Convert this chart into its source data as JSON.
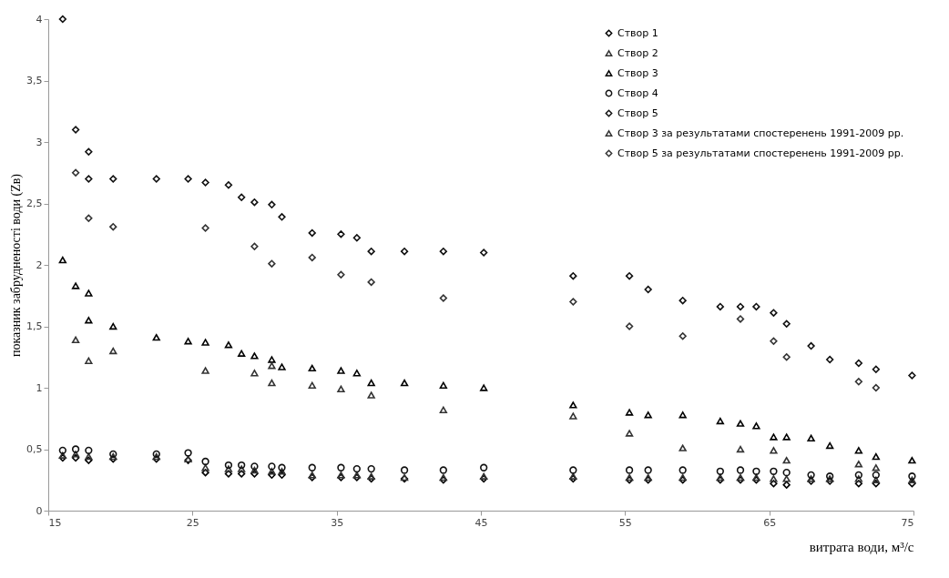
{
  "chart_data": {
    "type": "scatter",
    "xlabel": "витрата води, м³/с",
    "ylabel": "показник забрудненості води (Zв)",
    "xlim": [
      15,
      75
    ],
    "xticks": [
      15,
      25,
      35,
      45,
      55,
      65,
      75
    ],
    "ylim": [
      0,
      4
    ],
    "yticks": [
      0,
      {
        "value": 0.5,
        "label": "0,5"
      },
      1,
      {
        "value": 1.5,
        "label": "1,5"
      },
      2,
      {
        "value": 2.5,
        "label": "2,5"
      },
      3,
      {
        "value": 3.5,
        "label": "3,5"
      },
      4
    ],
    "grid": false,
    "legend": "top right",
    "series": [
      {
        "name": "Створ 1",
        "color": "#000000",
        "marker": "diamond",
        "x": [
          16,
          16.9,
          17.8,
          19.5,
          22.5,
          24.7,
          25.9,
          27.5,
          28.4,
          29.3,
          30.5,
          31.2,
          33.3,
          35.3,
          36.4,
          37.4,
          39.7,
          42.4,
          45.2,
          51.4,
          55.3,
          56.6,
          59.0,
          61.6,
          63.0,
          64.1,
          65.3,
          66.2,
          67.9,
          69.2,
          71.2,
          72.4,
          74.9
        ],
        "values": [
          0.43,
          0.43,
          0.41,
          0.42,
          0.42,
          0.41,
          0.31,
          0.3,
          0.3,
          0.3,
          0.29,
          0.29,
          0.27,
          0.27,
          0.27,
          0.26,
          0.26,
          0.25,
          0.26,
          0.26,
          0.25,
          0.25,
          0.25,
          0.25,
          0.25,
          0.25,
          0.22,
          0.21,
          0.24,
          0.24,
          0.22,
          0.22,
          0.22
        ]
      },
      {
        "name": "Створ 2",
        "color": "#333333",
        "marker": "triangle",
        "x": [
          16,
          16.9,
          17.8,
          19.5,
          22.5,
          24.7,
          25.9,
          27.5,
          28.4,
          29.3,
          30.5,
          31.2,
          33.3,
          35.3,
          36.4,
          37.4,
          39.7,
          42.4,
          45.2,
          51.4,
          55.3,
          56.6,
          59.0,
          61.6,
          63.0,
          64.1,
          65.3,
          66.2,
          67.9,
          69.2,
          71.2,
          72.4,
          74.9
        ],
        "values": [
          0.45,
          0.46,
          0.44,
          0.44,
          0.44,
          0.42,
          0.35,
          0.34,
          0.34,
          0.33,
          0.32,
          0.32,
          0.29,
          0.29,
          0.29,
          0.28,
          0.27,
          0.27,
          0.28,
          0.28,
          0.27,
          0.27,
          0.27,
          0.27,
          0.27,
          0.27,
          0.26,
          0.26,
          0.26,
          0.26,
          0.26,
          0.25,
          0.25
        ]
      },
      {
        "name": "Створ 3",
        "color": "#000000",
        "marker": "triangle",
        "x": [
          16.0,
          16.9,
          17.8,
          17.8,
          19.5,
          22.5,
          24.7,
          25.9,
          27.5,
          28.4,
          29.3,
          30.5,
          31.2,
          33.3,
          35.3,
          36.4,
          37.4,
          39.7,
          42.4,
          45.2,
          51.4,
          55.3,
          56.6,
          59.0,
          61.6,
          63.0,
          64.1,
          65.3,
          66.2,
          67.9,
          69.2,
          71.2,
          72.4,
          74.9
        ],
        "values": [
          2.04,
          1.83,
          1.77,
          1.55,
          1.5,
          1.41,
          1.38,
          1.37,
          1.35,
          1.28,
          1.26,
          1.23,
          1.17,
          1.16,
          1.14,
          1.12,
          1.04,
          1.04,
          1.02,
          1.0,
          0.86,
          0.8,
          0.78,
          0.78,
          0.73,
          0.71,
          0.69,
          0.6,
          0.6,
          0.59,
          0.53,
          0.49,
          0.44,
          0.41
        ]
      },
      {
        "name": "Створ 4",
        "color": "#111111",
        "marker": "circle",
        "x": [
          16,
          16.9,
          17.8,
          19.5,
          22.5,
          24.7,
          25.9,
          27.5,
          28.4,
          29.3,
          30.5,
          31.2,
          33.3,
          35.3,
          36.4,
          37.4,
          39.7,
          42.4,
          45.2,
          51.4,
          55.3,
          56.6,
          59.0,
          61.6,
          63.0,
          64.1,
          65.3,
          66.2,
          67.9,
          69.2,
          71.2,
          72.4,
          74.9
        ],
        "values": [
          0.49,
          0.5,
          0.49,
          0.46,
          0.46,
          0.47,
          0.4,
          0.37,
          0.37,
          0.36,
          0.36,
          0.35,
          0.35,
          0.35,
          0.34,
          0.34,
          0.33,
          0.33,
          0.35,
          0.33,
          0.33,
          0.33,
          0.33,
          0.32,
          0.33,
          0.32,
          0.32,
          0.31,
          0.29,
          0.28,
          0.29,
          0.29,
          0.28
        ]
      },
      {
        "name": "Створ 5",
        "color": "#111111",
        "marker": "diamond",
        "x": [
          16,
          16.9,
          17.8,
          17.8,
          19.5,
          22.5,
          24.7,
          25.9,
          27.5,
          28.4,
          29.3,
          30.5,
          31.2,
          33.3,
          35.3,
          36.4,
          37.4,
          39.7,
          42.4,
          45.2,
          51.4,
          55.3,
          56.6,
          59.0,
          61.6,
          63.0,
          64.1,
          65.3,
          66.2,
          67.9,
          69.2,
          71.2,
          72.4,
          74.9
        ],
        "values": [
          4.0,
          3.1,
          2.92,
          2.7,
          2.7,
          2.7,
          2.7,
          2.67,
          2.65,
          2.55,
          2.51,
          2.49,
          2.39,
          2.26,
          2.25,
          2.22,
          2.11,
          2.11,
          2.11,
          2.1,
          1.91,
          1.91,
          1.8,
          1.71,
          1.66,
          1.66,
          1.66,
          1.61,
          1.52,
          1.34,
          1.23,
          1.2,
          1.15,
          1.1
        ]
      },
      {
        "name": "Створ 3 за результатами спостеренень 1991-2009 рр.",
        "color": "#333333",
        "marker": "triangle",
        "x": [
          16.9,
          17.8,
          19.5,
          25.9,
          29.3,
          30.5,
          30.5,
          33.3,
          35.3,
          37.4,
          42.4,
          51.4,
          55.3,
          59.0,
          63.0,
          65.3,
          66.2,
          71.2,
          72.4
        ],
        "values": [
          1.39,
          1.22,
          1.3,
          1.14,
          1.12,
          1.18,
          1.04,
          1.02,
          0.99,
          0.94,
          0.82,
          0.77,
          0.63,
          0.51,
          0.5,
          0.49,
          0.41,
          0.38,
          0.35
        ]
      },
      {
        "name": "Створ 5 за результатами спостеренень 1991-2009 рр.",
        "color": "#333333",
        "marker": "diamond",
        "x": [
          16.9,
          17.8,
          19.5,
          25.9,
          29.3,
          30.5,
          33.3,
          35.3,
          37.4,
          42.4,
          51.4,
          55.3,
          59.0,
          63.0,
          65.3,
          66.2,
          71.2,
          72.4
        ],
        "values": [
          2.75,
          2.38,
          2.31,
          2.3,
          2.15,
          2.01,
          2.06,
          1.92,
          1.86,
          1.73,
          1.7,
          1.5,
          1.42,
          1.56,
          1.38,
          1.25,
          1.05,
          1.0
        ]
      }
    ]
  }
}
